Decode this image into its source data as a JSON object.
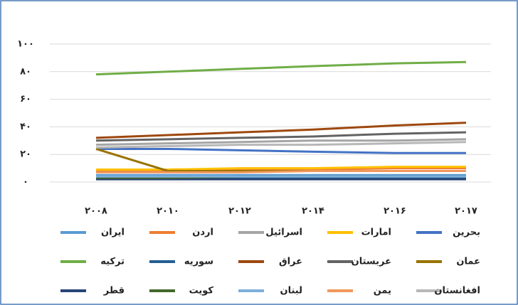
{
  "chart_data": {
    "type": "line",
    "categories": [
      "۲۰۰۸",
      "۲۰۱۰",
      "۲۰۱۲",
      "۲۰۱۴",
      "۲۰۱۶",
      "۲۰۱۷"
    ],
    "ylim": [
      0,
      100
    ],
    "yticks": [
      {
        "value": 0,
        "label": "۰"
      },
      {
        "value": 20,
        "label": "۲۰"
      },
      {
        "value": 40,
        "label": "۴۰"
      },
      {
        "value": 60,
        "label": "۶۰"
      },
      {
        "value": 80,
        "label": "۸۰"
      },
      {
        "value": 100,
        "label": "۱۰۰"
      }
    ],
    "grid": true,
    "series": [
      {
        "name": "ایران",
        "color": "#5b9bd5",
        "values": [
          5,
          5,
          5,
          5,
          5,
          5
        ]
      },
      {
        "name": "اردن",
        "color": "#ed7d31",
        "values": [
          8,
          8,
          9,
          9,
          10,
          10
        ]
      },
      {
        "name": "اسرائیل",
        "color": "#a5a5a5",
        "values": [
          27,
          28,
          29,
          30,
          30,
          31
        ]
      },
      {
        "name": "امارات",
        "color": "#ffc000",
        "values": [
          9,
          9,
          10,
          10,
          11,
          11
        ]
      },
      {
        "name": "بحرین",
        "color": "#4472c4",
        "values": [
          24,
          24,
          23,
          22,
          21,
          21
        ]
      },
      {
        "name": "ترکیه",
        "color": "#70ad47",
        "values": [
          78,
          80,
          82,
          84,
          86,
          87
        ]
      },
      {
        "name": "سوریه",
        "color": "#255e91",
        "values": [
          3,
          3,
          3,
          3,
          3,
          3
        ]
      },
      {
        "name": "عراق",
        "color": "#9e480e",
        "values": [
          32,
          34,
          36,
          38,
          41,
          43
        ]
      },
      {
        "name": "عربستان",
        "color": "#636363",
        "values": [
          30,
          31,
          32,
          33,
          35,
          36
        ]
      },
      {
        "name": "عمان",
        "color": "#997300",
        "values": [
          24,
          8,
          8,
          8,
          8,
          8
        ]
      },
      {
        "name": "قطر",
        "color": "#264478",
        "values": [
          2,
          2,
          2,
          2,
          2,
          2
        ]
      },
      {
        "name": "کویت",
        "color": "#43682b",
        "values": [
          3,
          3,
          4,
          4,
          4,
          4
        ]
      },
      {
        "name": "لبنان",
        "color": "#7cafdd",
        "values": [
          4,
          4,
          4,
          4,
          4,
          4
        ]
      },
      {
        "name": "یمن",
        "color": "#f1975a",
        "values": [
          7,
          7,
          7,
          8,
          8,
          8
        ]
      },
      {
        "name": "افغانستان",
        "color": "#b7b7b7",
        "values": [
          25,
          26,
          27,
          27,
          28,
          29
        ]
      }
    ]
  }
}
